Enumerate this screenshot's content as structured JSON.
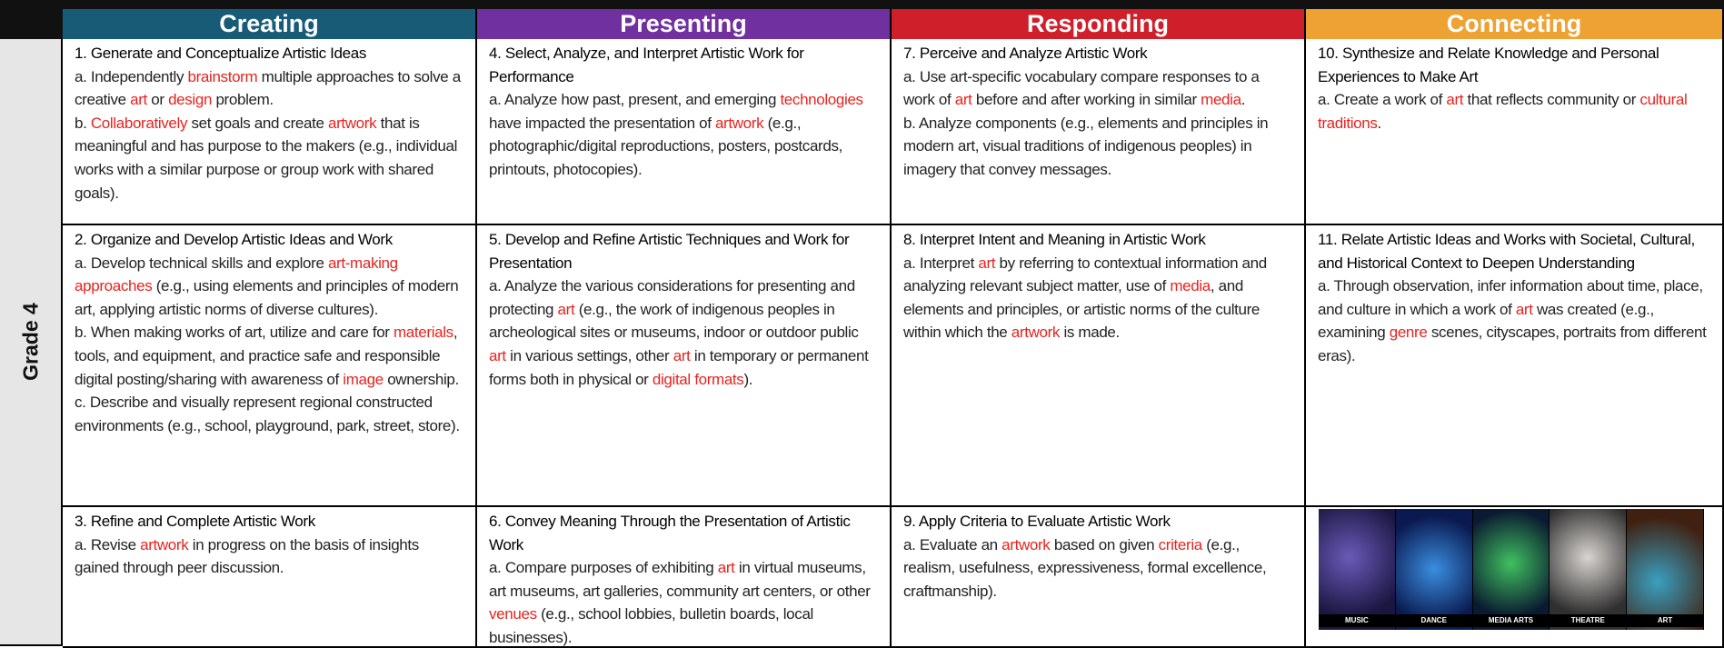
{
  "header": {
    "columns": [
      "Creating",
      "Presenting",
      "Responding",
      "Connecting"
    ]
  },
  "row_label": "Grade 4",
  "table": {
    "rows": [
      {
        "cells": [
          {
            "title": "1. Generate and Conceptualize Artistic Ideas",
            "paragraphs": [
              [
                "a. Independently ",
                "brainstorm",
                " multiple approaches to solve a creative ",
                "art",
                " or ",
                "design",
                " problem."
              ],
              [
                "b. ",
                "Collaboratively",
                " set goals and create ",
                "artwork",
                " that is meaningful and has purpose to the makers (e.g., individual works with a similar purpose or group work with shared goals)."
              ]
            ]
          },
          {
            "title": "4. Select, Analyze, and Interpret Artistic Work for Performance",
            "paragraphs": [
              [
                "a. Analyze how past, present, and emerging ",
                "technologies",
                " have impacted the presentation of ",
                "artwork",
                " (e.g., photographic/digital reproductions, posters, postcards, printouts, photocopies)."
              ]
            ]
          },
          {
            "title": "7. Perceive and Analyze Artistic Work",
            "paragraphs": [
              [
                "a. Use art-specific vocabulary compare responses to a work of ",
                "art",
                " before and after working in similar ",
                "media",
                "."
              ],
              [
                "b. Analyze components (e.g., elements and principles in modern art, visual traditions of indigenous peoples) in imagery that convey messages."
              ]
            ]
          },
          {
            "title": "10. Synthesize and Relate Knowledge and Personal Experiences to Make Art",
            "paragraphs": [
              [
                "a. Create a work of ",
                "art",
                " that reflects community or ",
                "cultural traditions",
                "."
              ]
            ]
          }
        ]
      },
      {
        "cells": [
          {
            "title": "2. Organize and Develop Artistic Ideas and Work",
            "paragraphs": [
              [
                "a. Develop technical skills and explore ",
                "art-making approaches",
                " (e.g., using elements and principles of modern art, applying artistic norms of diverse cultures)."
              ],
              [
                "b. When making works of art, utilize and care for ",
                "materials",
                ", tools, and equipment, and practice safe and responsible digital posting/sharing with awareness of ",
                "image",
                " ownership."
              ],
              [
                "c. Describe and visually represent regional constructed environments (e.g., school, playground, park, street, store)."
              ]
            ]
          },
          {
            "title": "5. Develop and Refine Artistic Techniques and Work for Presentation",
            "paragraphs": [
              [
                "a. Analyze the various considerations for presenting and protecting ",
                "art",
                " (e.g., the work of indigenous peoples in archeological sites or museums, indoor or outdoor public ",
                "art",
                " in various settings, other ",
                "art",
                " in temporary or permanent forms both in physical or ",
                "digital formats",
                ")."
              ]
            ]
          },
          {
            "title": "8. Interpret Intent and Meaning in Artistic Work",
            "paragraphs": [
              [
                "a. Interpret ",
                "art",
                " by referring to contextual information and analyzing relevant subject matter, use of ",
                "media",
                ", and elements and principles, or artistic norms of the culture within which the ",
                "artwork",
                " is made."
              ]
            ]
          },
          {
            "title": "11. Relate Artistic Ideas and Works with Societal, Cultural, and Historical Context to Deepen Understanding",
            "paragraphs": [
              [
                "a. Through observation, infer information about time, place, and culture in which a work of ",
                "art",
                " was created (e.g., examining ",
                "genre",
                " scenes, cityscapes, portraits from different eras)."
              ]
            ]
          }
        ]
      },
      {
        "cells": [
          {
            "title": "3. Refine and Complete Artistic Work",
            "paragraphs": [
              [
                "a. Revise ",
                "artwork",
                " in progress on the basis of insights gained through peer discussion."
              ]
            ]
          },
          {
            "title": "6. Convey Meaning Through the Presentation of Artistic Work",
            "paragraphs": [
              [
                "a. Compare purposes of exhibiting ",
                "art",
                " in virtual museums, art museums, art galleries, community art centers, or other ",
                "venues",
                " (e.g., school lobbies, bulletin boards, local businesses)."
              ]
            ]
          },
          {
            "title": "9. Apply Criteria to Evaluate Artistic Work",
            "paragraphs": [
              [
                "a. Evaluate an ",
                "artwork",
                " based on given ",
                "criteria",
                " (e.g., realism, usefulness, expressiveness, formal excellence, craftmanship)."
              ]
            ]
          },
          {
            "image_labels": [
              "MUSIC",
              "DANCE",
              "MEDIA ARTS",
              "THEATRE",
              "ART"
            ]
          }
        ]
      }
    ]
  }
}
